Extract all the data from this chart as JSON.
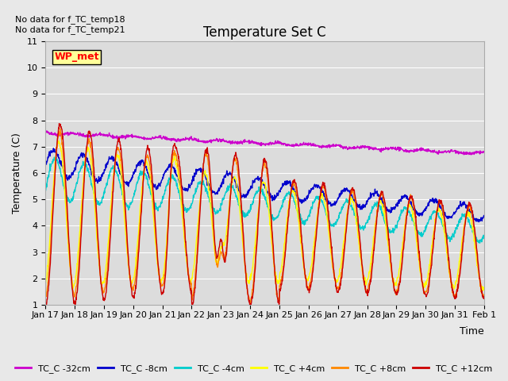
{
  "title": "Temperature Set C",
  "ylabel": "Temperature (C)",
  "xlabel": "Time",
  "ylim": [
    1.0,
    11.0
  ],
  "yticks": [
    1.0,
    2.0,
    3.0,
    4.0,
    5.0,
    6.0,
    7.0,
    8.0,
    9.0,
    10.0,
    11.0
  ],
  "no_data_text1": "No data for f_TC_temp18",
  "no_data_text2": "No data for f_TC_temp21",
  "wp_met_label": "WP_met",
  "background_color": "#e8e8e8",
  "plot_bg_color": "#dcdcdc",
  "legend": [
    {
      "label": "TC_C -32cm",
      "color": "#cc00cc"
    },
    {
      "label": "TC_C -8cm",
      "color": "#0000cc"
    },
    {
      "label": "TC_C -4cm",
      "color": "#00cccc"
    },
    {
      "label": "TC_C +4cm",
      "color": "#ffff00"
    },
    {
      "label": "TC_C +8cm",
      "color": "#ff8800"
    },
    {
      "label": "TC_C +12cm",
      "color": "#cc0000"
    }
  ],
  "x_tick_labels": [
    "Jan 17",
    "Jan 18",
    "Jan 19",
    "Jan 20",
    "Jan 21",
    "Jan 22",
    "Jan 23",
    "Jan 24",
    "Jan 25",
    "Jan 26",
    "Jan 27",
    "Jan 28",
    "Jan 29",
    "Jan 30",
    "Jan 31",
    "Feb 1"
  ],
  "num_points": 1440
}
